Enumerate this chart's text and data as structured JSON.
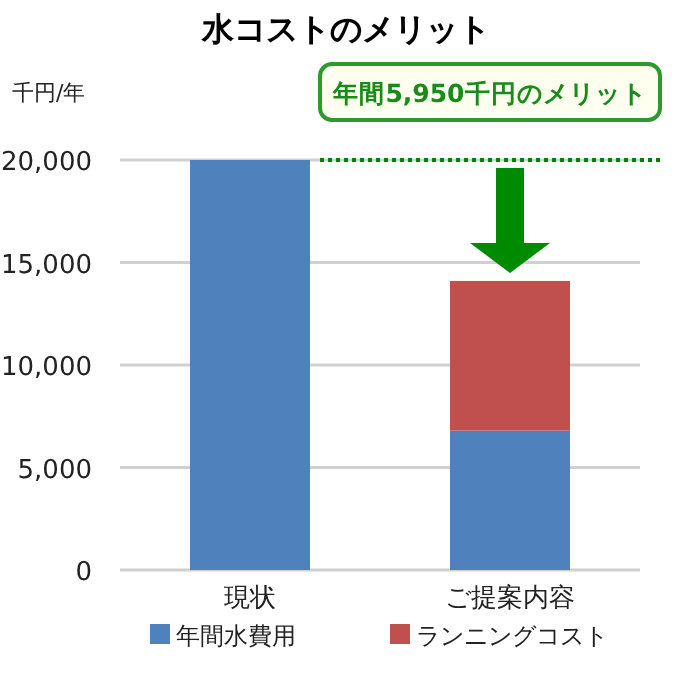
{
  "chart_data": {
    "type": "bar",
    "stacked": true,
    "title": "水コストのメリット",
    "ylabel": "千円/年",
    "categories": [
      "現状",
      "ご提案内容"
    ],
    "series": [
      {
        "name": "年間水費用",
        "color": "#4f81bd",
        "values": [
          20000,
          6800
        ]
      },
      {
        "name": "ランニングコスト",
        "color": "#c0504d",
        "values": [
          null,
          7300
        ]
      }
    ],
    "ylim": [
      0,
      20000
    ],
    "yticks": [
      {
        "value": 0,
        "label": "0"
      },
      {
        "value": 5000,
        "label": "5,000"
      },
      {
        "value": 10000,
        "label": "10,000"
      },
      {
        "value": 15000,
        "label": "15,000"
      },
      {
        "value": 20000,
        "label": "20,000"
      }
    ],
    "grid": "y",
    "legend": "bottom",
    "ref_lines": [
      {
        "axis": "y",
        "value": 20000,
        "color": "#008000",
        "line_style": "dotted"
      }
    ],
    "annotations": [
      "年間5,950千円のメリット"
    ]
  }
}
